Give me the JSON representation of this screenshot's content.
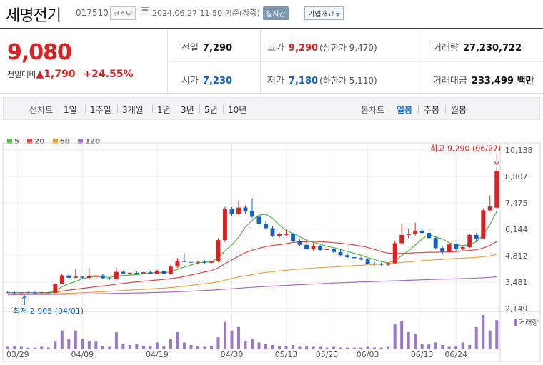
{
  "header": {
    "name": "세명전기",
    "code": "017510",
    "market": "코스닥",
    "datetime": "2024.06.27 11:50",
    "basis": "기준(장중)",
    "realtime": "실시간",
    "company_info": "기업개요"
  },
  "price": {
    "current": "9,080",
    "change_label": "전일대비",
    "change": "1,790",
    "change_rate": "+24.55%"
  },
  "stats": {
    "prev_close_label": "전일",
    "prev_close": "7,290",
    "high_label": "고가",
    "high": "9,290",
    "upper_limit": "(상한가 9,470)",
    "volume_label": "거래량",
    "volume": "27,230,722",
    "open_label": "시가",
    "open": "7,230",
    "low_label": "저가",
    "low": "7,180",
    "lower_limit": "(하한가 5,110)",
    "turnover_label": "거래대금",
    "turnover": "233,499 백만"
  },
  "period_bar": {
    "line_label": "선차트",
    "line_periods": [
      "1일",
      "1주일",
      "3개월",
      "1년",
      "3년",
      "5년",
      "10년"
    ],
    "candle_label": "봉차트",
    "candle_periods": [
      "일봉",
      "주봉",
      "월봉"
    ],
    "selected": "일봉"
  },
  "legend": [
    {
      "name": "5",
      "color": "#52b848"
    },
    {
      "name": "20",
      "color": "#e04848"
    },
    {
      "name": "60",
      "color": "#f0a040"
    },
    {
      "name": "120",
      "color": "#a86cc8"
    }
  ],
  "chart_data": {
    "type": "candlestick",
    "y_ticks": [
      "10,138",
      "8,807",
      "7,475",
      "6,144",
      "4,812",
      "3,481",
      "2,149"
    ],
    "ylim": [
      2149,
      10138
    ],
    "x_ticks": [
      "03/29",
      "04/09",
      "04/19",
      "04/30",
      "05/13",
      "05/23",
      "06/03",
      "06/13",
      "06/24"
    ],
    "high_annotation": "최고 9,290 (06/27)",
    "low_annotation": "최저 2,905 (04/01)",
    "volume_label": "거래량",
    "colors": {
      "up": "#e02020",
      "down": "#1060c8",
      "volume": "#9b78c9"
    },
    "candles": [
      {
        "o": 2970,
        "h": 3010,
        "l": 2930,
        "c": 2960
      },
      {
        "o": 2960,
        "h": 3000,
        "l": 2905,
        "c": 2930
      },
      {
        "o": 2930,
        "h": 2990,
        "l": 2910,
        "c": 2960
      },
      {
        "o": 2960,
        "h": 3010,
        "l": 2930,
        "c": 2950
      },
      {
        "o": 2950,
        "h": 3000,
        "l": 2920,
        "c": 2940
      },
      {
        "o": 2940,
        "h": 2990,
        "l": 2920,
        "c": 2970
      },
      {
        "o": 2960,
        "h": 3000,
        "l": 2930,
        "c": 2940
      },
      {
        "o": 2940,
        "h": 3420,
        "l": 2930,
        "c": 3400
      },
      {
        "o": 3400,
        "h": 3900,
        "l": 3380,
        "c": 3820
      },
      {
        "o": 3820,
        "h": 3880,
        "l": 3650,
        "c": 3700
      },
      {
        "o": 3700,
        "h": 4150,
        "l": 3690,
        "c": 3760
      },
      {
        "o": 3760,
        "h": 3800,
        "l": 3640,
        "c": 3700
      },
      {
        "o": 3700,
        "h": 4200,
        "l": 3620,
        "c": 3780
      },
      {
        "o": 3780,
        "h": 3850,
        "l": 3700,
        "c": 3820
      },
      {
        "o": 3820,
        "h": 3880,
        "l": 3650,
        "c": 3680
      },
      {
        "o": 3680,
        "h": 3720,
        "l": 3600,
        "c": 3630
      },
      {
        "o": 3630,
        "h": 4200,
        "l": 3600,
        "c": 4000
      },
      {
        "o": 4000,
        "h": 4060,
        "l": 3880,
        "c": 3920
      },
      {
        "o": 3920,
        "h": 3970,
        "l": 3850,
        "c": 3950
      },
      {
        "o": 3950,
        "h": 4020,
        "l": 3870,
        "c": 3920
      },
      {
        "o": 3920,
        "h": 4000,
        "l": 3890,
        "c": 3980
      },
      {
        "o": 3980,
        "h": 4060,
        "l": 3880,
        "c": 3910
      },
      {
        "o": 3910,
        "h": 4100,
        "l": 3890,
        "c": 4060
      },
      {
        "o": 4060,
        "h": 4100,
        "l": 3820,
        "c": 3880
      },
      {
        "o": 3880,
        "h": 4350,
        "l": 3860,
        "c": 4260
      },
      {
        "o": 4260,
        "h": 4700,
        "l": 4200,
        "c": 4560
      },
      {
        "o": 4560,
        "h": 4950,
        "l": 4480,
        "c": 4500
      },
      {
        "o": 4500,
        "h": 4600,
        "l": 4420,
        "c": 4480
      },
      {
        "o": 4480,
        "h": 4560,
        "l": 4400,
        "c": 4500
      },
      {
        "o": 4500,
        "h": 4580,
        "l": 4420,
        "c": 4460
      },
      {
        "o": 4460,
        "h": 4540,
        "l": 4380,
        "c": 4520
      },
      {
        "o": 4520,
        "h": 5700,
        "l": 4480,
        "c": 5600
      },
      {
        "o": 5600,
        "h": 7280,
        "l": 5500,
        "c": 7150
      },
      {
        "o": 7150,
        "h": 7260,
        "l": 6800,
        "c": 6900
      },
      {
        "o": 6900,
        "h": 7550,
        "l": 6860,
        "c": 7240
      },
      {
        "o": 7240,
        "h": 7350,
        "l": 6900,
        "c": 7050
      },
      {
        "o": 7050,
        "h": 7700,
        "l": 6720,
        "c": 6780
      },
      {
        "o": 6780,
        "h": 6900,
        "l": 6300,
        "c": 6420
      },
      {
        "o": 6420,
        "h": 6560,
        "l": 6120,
        "c": 6200
      },
      {
        "o": 6200,
        "h": 6320,
        "l": 5760,
        "c": 5820
      },
      {
        "o": 5820,
        "h": 5980,
        "l": 5700,
        "c": 5890
      },
      {
        "o": 5890,
        "h": 6120,
        "l": 5820,
        "c": 5900
      },
      {
        "o": 5900,
        "h": 5960,
        "l": 5500,
        "c": 5560
      },
      {
        "o": 5560,
        "h": 5640,
        "l": 5300,
        "c": 5360
      },
      {
        "o": 5360,
        "h": 5500,
        "l": 5120,
        "c": 5160
      },
      {
        "o": 5160,
        "h": 5480,
        "l": 5060,
        "c": 5300
      },
      {
        "o": 5300,
        "h": 5360,
        "l": 5040,
        "c": 5100
      },
      {
        "o": 5100,
        "h": 5240,
        "l": 5040,
        "c": 5160
      },
      {
        "o": 5160,
        "h": 5220,
        "l": 4960,
        "c": 5000
      },
      {
        "o": 5000,
        "h": 5160,
        "l": 4760,
        "c": 4840
      },
      {
        "o": 4840,
        "h": 4950,
        "l": 4690,
        "c": 4740
      },
      {
        "o": 4740,
        "h": 4800,
        "l": 4650,
        "c": 4690
      },
      {
        "o": 4690,
        "h": 4760,
        "l": 4580,
        "c": 4620
      },
      {
        "o": 4620,
        "h": 4680,
        "l": 4380,
        "c": 4420
      },
      {
        "o": 4420,
        "h": 4500,
        "l": 4320,
        "c": 4400
      },
      {
        "o": 4400,
        "h": 4460,
        "l": 4300,
        "c": 4360
      },
      {
        "o": 4360,
        "h": 4460,
        "l": 4300,
        "c": 4440
      },
      {
        "o": 4440,
        "h": 5560,
        "l": 4420,
        "c": 5440
      },
      {
        "o": 5440,
        "h": 6420,
        "l": 5380,
        "c": 5860
      },
      {
        "o": 5860,
        "h": 6200,
        "l": 5700,
        "c": 5920
      },
      {
        "o": 5920,
        "h": 6480,
        "l": 5820,
        "c": 6080
      },
      {
        "o": 6080,
        "h": 6220,
        "l": 5840,
        "c": 5960
      },
      {
        "o": 5960,
        "h": 6000,
        "l": 5660,
        "c": 5700
      },
      {
        "o": 5700,
        "h": 5760,
        "l": 5120,
        "c": 5200
      },
      {
        "o": 5200,
        "h": 5320,
        "l": 4880,
        "c": 5000
      },
      {
        "o": 5000,
        "h": 5460,
        "l": 4980,
        "c": 5380
      },
      {
        "o": 5380,
        "h": 5440,
        "l": 5080,
        "c": 5140
      },
      {
        "o": 5140,
        "h": 5300,
        "l": 5080,
        "c": 5240
      },
      {
        "o": 5240,
        "h": 5900,
        "l": 5200,
        "c": 5860
      },
      {
        "o": 5860,
        "h": 5960,
        "l": 5560,
        "c": 5680
      },
      {
        "o": 5680,
        "h": 7200,
        "l": 5640,
        "c": 7100
      },
      {
        "o": 7100,
        "h": 7860,
        "l": 7020,
        "c": 7290
      },
      {
        "o": 7230,
        "h": 9290,
        "l": 7180,
        "c": 9080
      }
    ],
    "ma5": [
      2960,
      2950,
      2950,
      2950,
      2950,
      2950,
      2950,
      3050,
      3250,
      3400,
      3520,
      3650,
      3720,
      3760,
      3740,
      3720,
      3780,
      3820,
      3840,
      3860,
      3900,
      3940,
      3960,
      3960,
      4000,
      4120,
      4240,
      4340,
      4450,
      4500,
      4490,
      4710,
      5060,
      5360,
      5740,
      6250,
      6600,
      6860,
      6900,
      6700,
      6350,
      6100,
      5930,
      5770,
      5590,
      5490,
      5390,
      5290,
      5220,
      5130,
      5030,
      4930,
      4840,
      4720,
      4620,
      4510,
      4460,
      4560,
      4820,
      5070,
      5350,
      5670,
      5880,
      5760,
      5660,
      5460,
      5370,
      5320,
      5370,
      5510,
      5860,
      6380,
      7050
    ],
    "ma20": [
      2960,
      2950,
      2950,
      2950,
      2950,
      2950,
      2950,
      2980,
      3030,
      3080,
      3120,
      3170,
      3210,
      3250,
      3290,
      3330,
      3380,
      3420,
      3460,
      3500,
      3530,
      3560,
      3590,
      3620,
      3660,
      3700,
      3760,
      3840,
      3920,
      4000,
      4060,
      4200,
      4410,
      4600,
      4790,
      4970,
      5090,
      5190,
      5270,
      5330,
      5370,
      5420,
      5480,
      5510,
      5520,
      5530,
      5520,
      5500,
      5470,
      5440,
      5400,
      5350,
      5300,
      5230,
      5130,
      5020,
      4940,
      4920,
      4930,
      4940,
      4960,
      4970,
      4990,
      4990,
      5000,
      5000,
      5020,
      5050,
      5080,
      5110,
      5200,
      5330,
      5520
    ],
    "ma60": [
      2880,
      2880,
      2880,
      2880,
      2885,
      2890,
      2895,
      2900,
      2910,
      2920,
      2935,
      2950,
      2965,
      2980,
      3000,
      3020,
      3040,
      3060,
      3080,
      3100,
      3120,
      3140,
      3160,
      3180,
      3210,
      3240,
      3280,
      3320,
      3360,
      3400,
      3440,
      3500,
      3580,
      3660,
      3740,
      3800,
      3860,
      3920,
      3970,
      4010,
      4050,
      4080,
      4110,
      4140,
      4170,
      4190,
      4210,
      4230,
      4250,
      4270,
      4290,
      4310,
      4330,
      4350,
      4370,
      4390,
      4410,
      4440,
      4470,
      4500,
      4530,
      4560,
      4590,
      4610,
      4630,
      4650,
      4670,
      4690,
      4710,
      4730,
      4760,
      4800,
      4880
    ],
    "ma120": [
      2850,
      2852,
      2855,
      2858,
      2860,
      2862,
      2865,
      2868,
      2872,
      2876,
      2880,
      2885,
      2890,
      2896,
      2902,
      2908,
      2915,
      2922,
      2930,
      2938,
      2946,
      2955,
      2964,
      2974,
      2985,
      2998,
      3012,
      3028,
      3045,
      3062,
      3080,
      3100,
      3124,
      3150,
      3176,
      3200,
      3222,
      3244,
      3264,
      3284,
      3302,
      3320,
      3338,
      3355,
      3372,
      3388,
      3404,
      3420,
      3436,
      3450,
      3464,
      3478,
      3490,
      3502,
      3514,
      3526,
      3538,
      3550,
      3562,
      3574,
      3586,
      3598,
      3610,
      3620,
      3630,
      3640,
      3650,
      3660,
      3672,
      3686,
      3700,
      3720,
      3750
    ],
    "volume": [
      3,
      4,
      3,
      2,
      2,
      3,
      2,
      9,
      22,
      12,
      22,
      12,
      10,
      9,
      4,
      3,
      20,
      6,
      5,
      6,
      4,
      4,
      8,
      4,
      12,
      20,
      8,
      5,
      4,
      3,
      4,
      14,
      32,
      22,
      26,
      10,
      12,
      8,
      6,
      5,
      4,
      4,
      5,
      3,
      4,
      3,
      3,
      2,
      3,
      2,
      2,
      2,
      2,
      3,
      2,
      2,
      3,
      30,
      33,
      20,
      18,
      6,
      6,
      8,
      5,
      3,
      4,
      8,
      5,
      26,
      40,
      22,
      34
    ]
  }
}
